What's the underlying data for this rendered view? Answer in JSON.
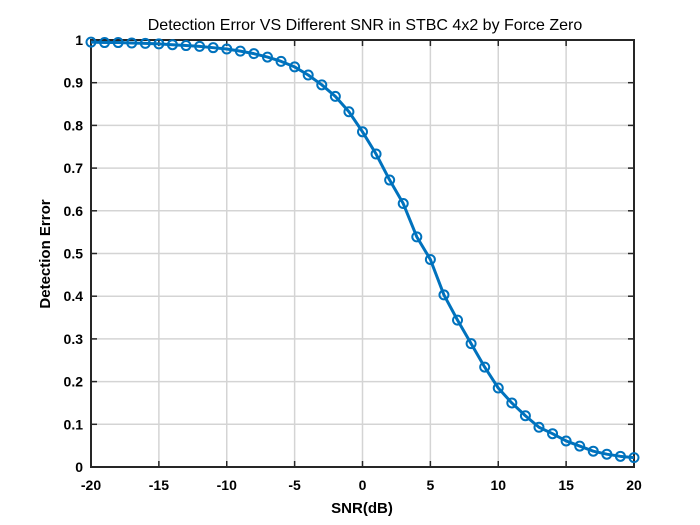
{
  "chart_data": {
    "type": "line",
    "title": "Detection Error VS Different SNR in STBC 4x2 by Force Zero",
    "xlabel": "SNR(dB)",
    "ylabel": "Detection Error",
    "xlim": [
      -20,
      20
    ],
    "ylim": [
      0,
      1
    ],
    "xticks": [
      -20,
      -15,
      -10,
      -5,
      0,
      5,
      10,
      15,
      20
    ],
    "yticks": [
      0,
      0.1,
      0.2,
      0.3,
      0.4,
      0.5,
      0.6,
      0.7,
      0.8,
      0.9,
      1
    ],
    "xtick_labels": [
      "-20",
      "-15",
      "-10",
      "-5",
      "0",
      "5",
      "10",
      "15",
      "20"
    ],
    "ytick_labels": [
      "0",
      "0.1",
      "0.2",
      "0.3",
      "0.4",
      "0.5",
      "0.6",
      "0.7",
      "0.8",
      "0.9",
      "1"
    ],
    "grid": true,
    "marker": "circle",
    "line_color": "#0072BD",
    "series": [
      {
        "x": [
          -20,
          -19,
          -18,
          -17,
          -16,
          -15,
          -14,
          -13,
          -12,
          -11,
          -10,
          -9,
          -8,
          -7,
          -6,
          -5,
          -4,
          -3,
          -2,
          -1,
          0,
          1,
          2,
          3,
          4,
          5,
          6,
          7,
          8,
          9,
          10,
          11,
          12,
          13,
          14,
          15,
          16,
          17,
          18,
          19,
          20
        ],
        "y": [
          0.995,
          0.994,
          0.994,
          0.993,
          0.992,
          0.991,
          0.989,
          0.987,
          0.985,
          0.982,
          0.979,
          0.974,
          0.968,
          0.96,
          0.95,
          0.937,
          0.918,
          0.895,
          0.868,
          0.832,
          0.785,
          0.733,
          0.672,
          0.617,
          0.539,
          0.486,
          0.403,
          0.344,
          0.289,
          0.234,
          0.185,
          0.15,
          0.12,
          0.093,
          0.078,
          0.061,
          0.049,
          0.037,
          0.03,
          0.025,
          0.022
        ]
      }
    ]
  }
}
